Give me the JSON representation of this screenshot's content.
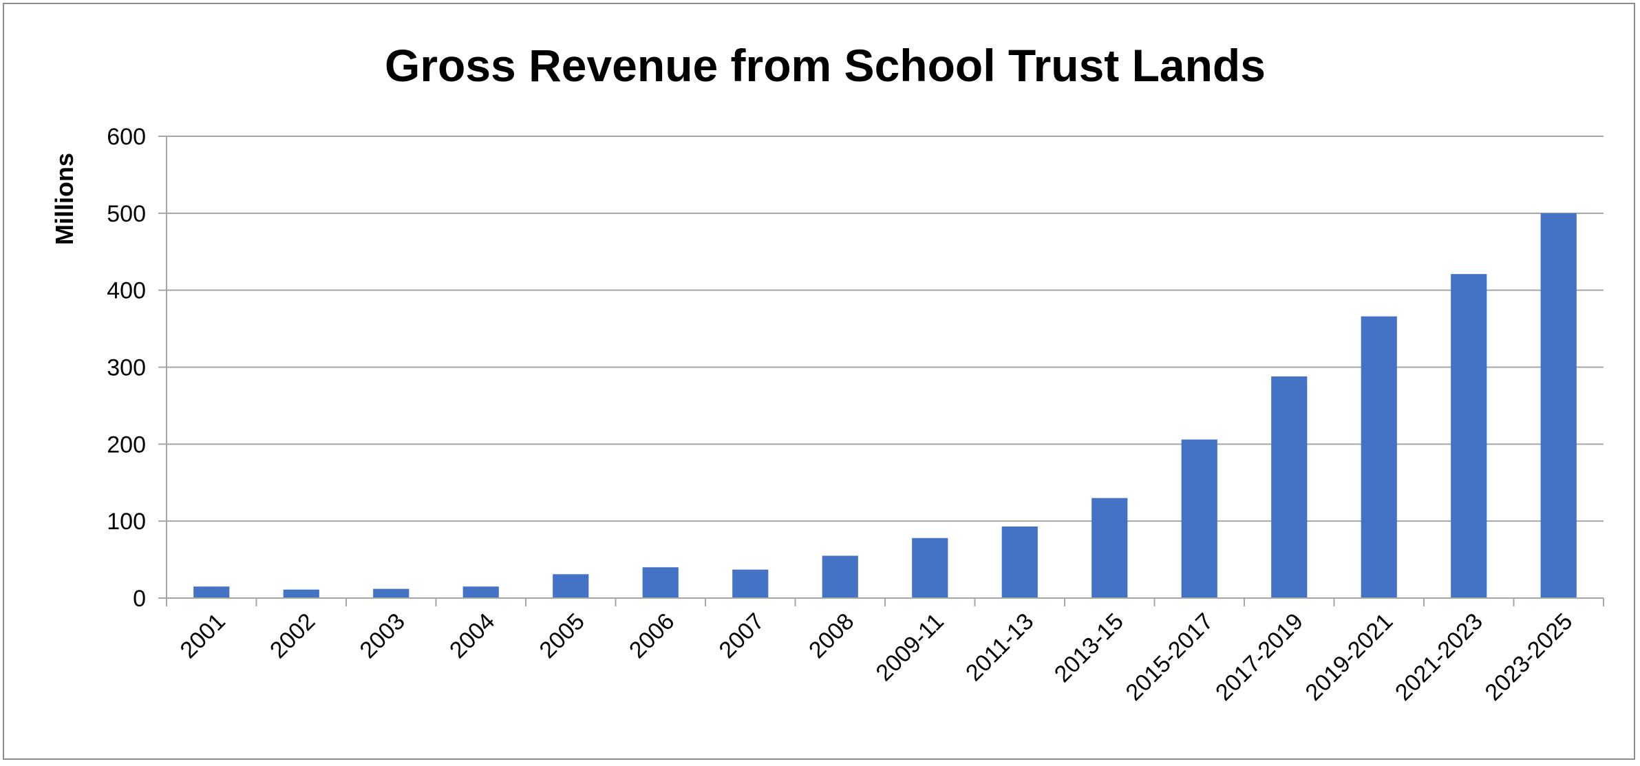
{
  "chart_data": {
    "type": "bar",
    "title": "Gross Revenue from School Trust Lands",
    "xlabel": "",
    "ylabel": "Millions",
    "ylim": [
      0,
      600
    ],
    "yticks": [
      0,
      100,
      200,
      300,
      400,
      500,
      600
    ],
    "grid": true,
    "legend": "none",
    "bar_color": "#4472C4",
    "categories": [
      "2001",
      "2002",
      "2003",
      "2004",
      "2005",
      "2006",
      "2007",
      "2008",
      "2009-11",
      "2011-13",
      "2013-15",
      "2015-2017",
      "2017-2019",
      "2019-2021",
      "2021-2023",
      "2023-2025"
    ],
    "values": [
      15,
      11,
      12,
      15,
      31,
      40,
      37,
      55,
      78,
      93,
      130,
      206,
      288,
      366,
      421,
      500
    ]
  }
}
